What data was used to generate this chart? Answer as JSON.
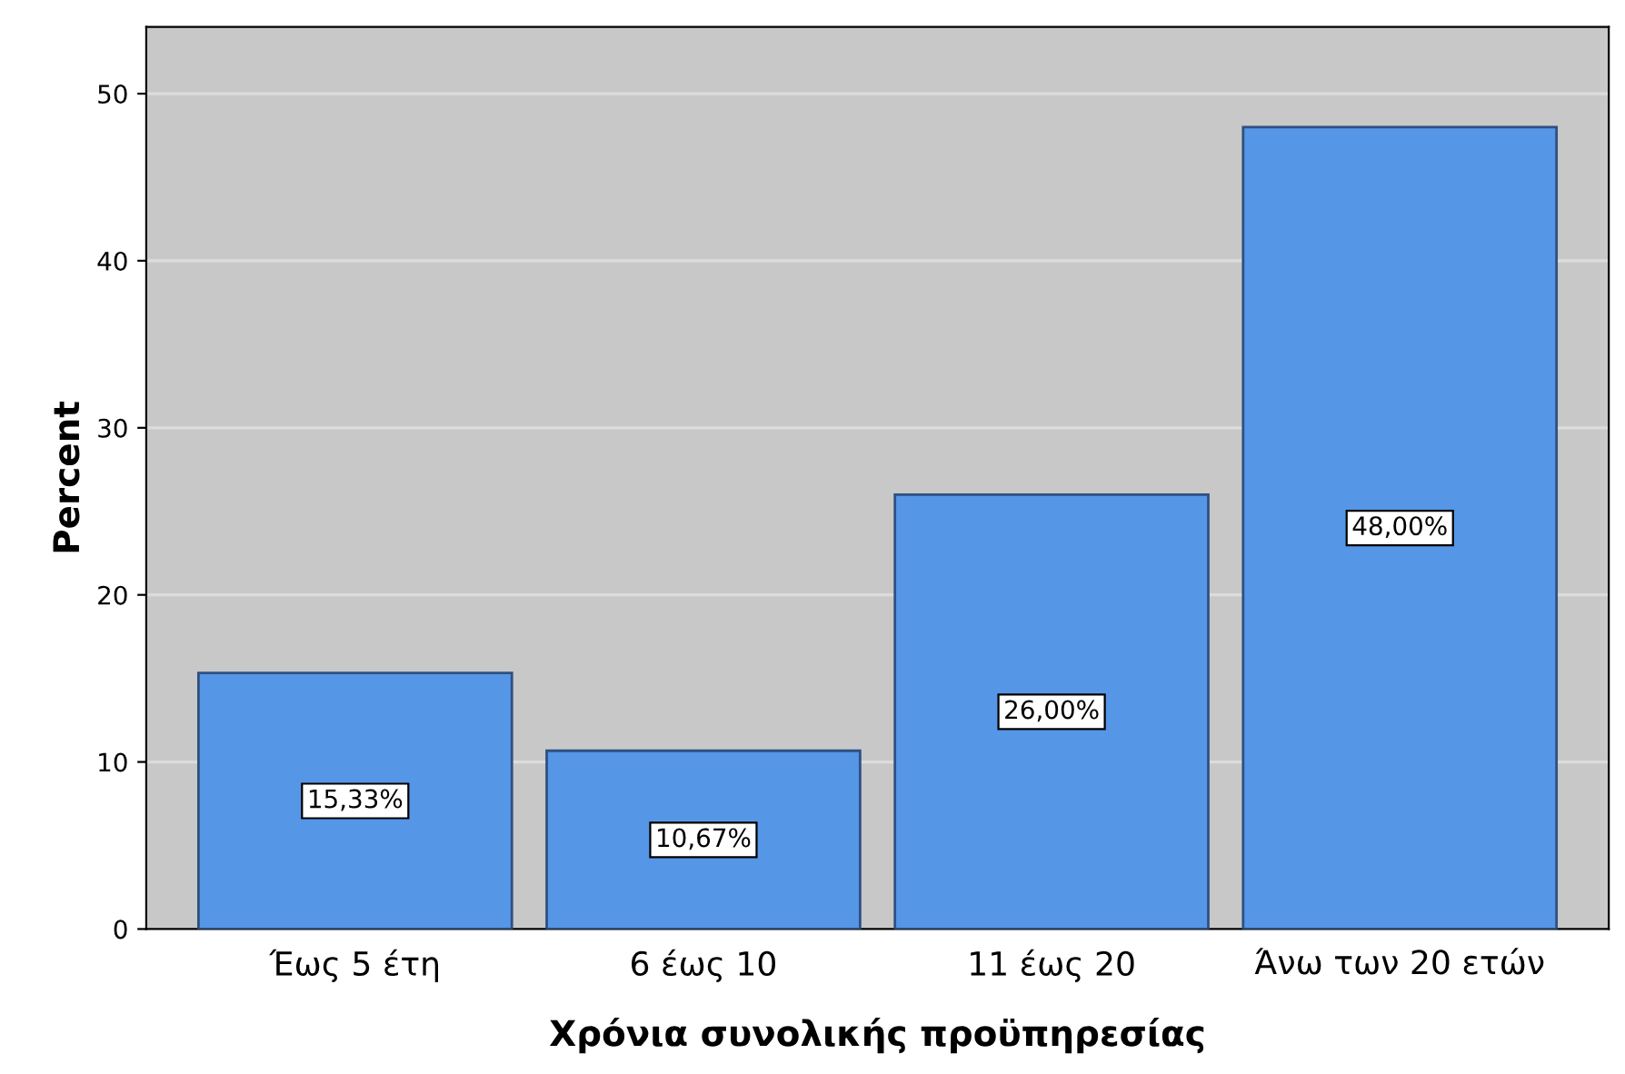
{
  "chart_data": {
    "type": "bar",
    "xlabel": "Χρόνια συνολικής προϋπηρεσίας",
    "ylabel": "Percent",
    "categories": [
      "Έως 5 έτη",
      "6 έως 10",
      "11 έως 20",
      "Άνω των 20 ετών"
    ],
    "values": [
      15.33,
      10.67,
      26.0,
      48.0
    ],
    "value_labels": [
      "15,33%",
      "10,67%",
      "26,00%",
      "48,00%"
    ],
    "color": "#5596e6",
    "ylim": [
      0,
      54
    ],
    "yticks": [
      0,
      10,
      20,
      30,
      40,
      50
    ],
    "grid": "y"
  }
}
